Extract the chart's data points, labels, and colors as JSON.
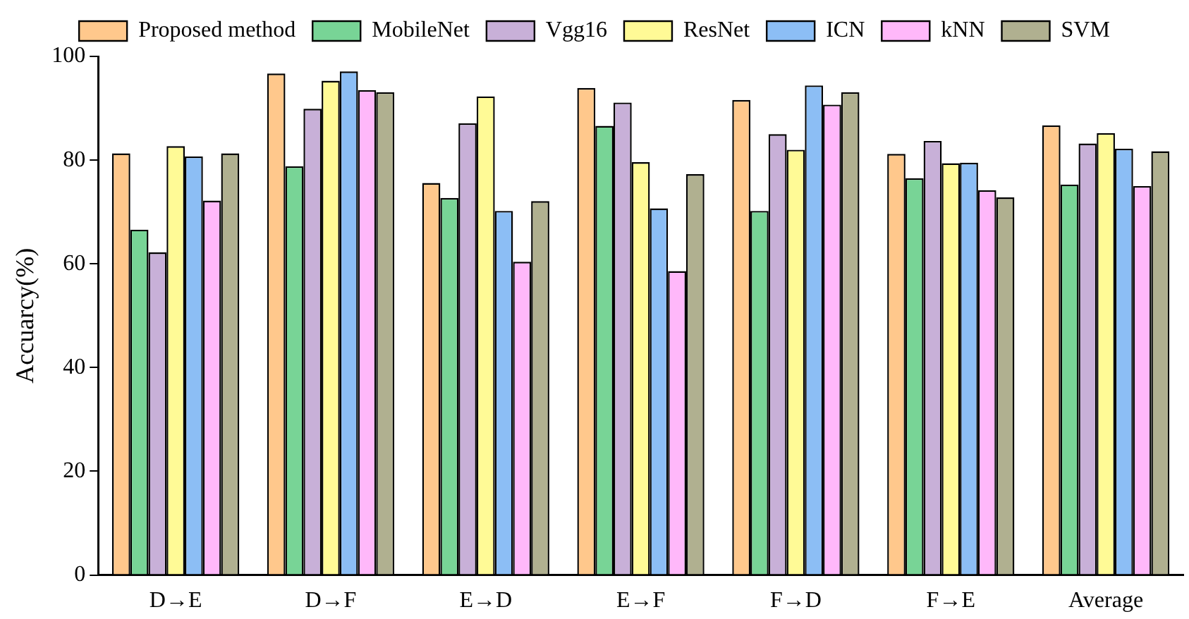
{
  "chart_data": {
    "type": "bar",
    "ylabel": "Accuarcy(%)",
    "categories": [
      "D→E",
      "D→F",
      "E→D",
      "E→F",
      "F→D",
      "F→E",
      "Average"
    ],
    "series": [
      {
        "name": "Proposed method",
        "color": "#ffc88c",
        "values": [
          81.3,
          96.7,
          75.6,
          93.9,
          91.6,
          81.2,
          86.7
        ]
      },
      {
        "name": "MobileNet",
        "color": "#78d496",
        "values": [
          66.6,
          78.8,
          72.7,
          86.6,
          70.2,
          76.5,
          75.3
        ]
      },
      {
        "name": "Vgg16",
        "color": "#c8b0d8",
        "values": [
          62.2,
          89.9,
          87.1,
          91.1,
          85.0,
          83.7,
          83.2
        ]
      },
      {
        "name": "ResNet",
        "color": "#fffa96",
        "values": [
          82.7,
          95.3,
          92.3,
          79.6,
          82.0,
          79.4,
          85.2
        ]
      },
      {
        "name": "ICN",
        "color": "#8cbef5",
        "values": [
          80.7,
          97.1,
          70.2,
          70.7,
          94.4,
          79.5,
          82.2
        ]
      },
      {
        "name": "kNN",
        "color": "#ffb8fa",
        "values": [
          72.2,
          93.5,
          60.4,
          58.6,
          90.7,
          74.2,
          75.0
        ]
      },
      {
        "name": "SVM",
        "color": "#b0b090",
        "values": [
          81.3,
          93.1,
          72.1,
          77.3,
          93.1,
          72.8,
          81.7
        ]
      }
    ],
    "ylim": [
      0,
      100
    ],
    "yticks": [
      0,
      20,
      40,
      60,
      80,
      100
    ],
    "grid": false,
    "legend": "top"
  }
}
